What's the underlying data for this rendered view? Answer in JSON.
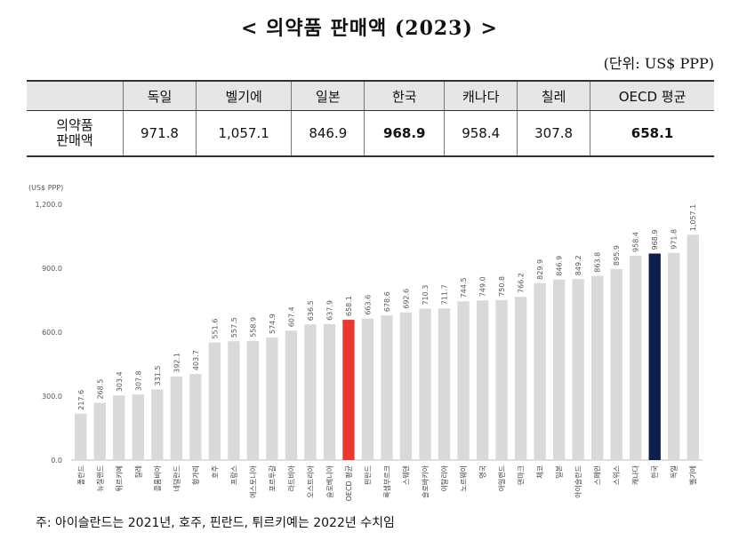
{
  "title": "< 의약품 판매액 (2023) >",
  "unit": "(단위: US$ PPP)",
  "summary_table": {
    "row_label_line1": "의약품",
    "row_label_line2": "판매액",
    "headers": [
      "독일",
      "벨기에",
      "일본",
      "한국",
      "캐나다",
      "칠레",
      "OECD 평균"
    ],
    "values": [
      "971.8",
      "1,057.1",
      "846.9",
      "968.9",
      "958.4",
      "307.8",
      "658.1"
    ]
  },
  "chart_data": {
    "type": "bar",
    "ylabel": "(US$ PPP)",
    "ylim": [
      0,
      1200
    ],
    "yticks": [
      "0.0",
      "300.0",
      "600.0",
      "900.0",
      "1,200.0"
    ],
    "grid": false,
    "categories": [
      "폴란드",
      "뉴질랜드",
      "튀르키예",
      "칠레",
      "콜롬비아",
      "네덜란드",
      "헝가리",
      "호주",
      "프랑스",
      "에스토니아",
      "포르투갈",
      "라트비아",
      "오스트리아",
      "슬로베니아",
      "OECD 평균",
      "핀란드",
      "룩셈부르크",
      "스웨덴",
      "슬로바키아",
      "이탈리아",
      "노르웨이",
      "영국",
      "아일랜드",
      "덴마크",
      "체코",
      "일본",
      "아이슬란드",
      "스페인",
      "스위스",
      "캐나다",
      "한국",
      "독일",
      "벨기에"
    ],
    "values": [
      217.6,
      268.5,
      303.4,
      307.8,
      331.5,
      392.1,
      403.7,
      551.6,
      557.5,
      558.9,
      574.9,
      607.4,
      636.5,
      637.9,
      658.1,
      663.6,
      678.6,
      692.6,
      710.3,
      711.7,
      744.5,
      749.0,
      750.8,
      766.2,
      829.9,
      846.9,
      849.2,
      863.8,
      895.9,
      958.4,
      968.9,
      971.8,
      1057.1
    ],
    "labels": [
      "217.6",
      "268.5",
      "303.4",
      "307.8",
      "331.5",
      "392.1",
      "403.7",
      "551.6",
      "557.5",
      "558.9",
      "574.9",
      "607.4",
      "636.5",
      "637.9",
      "658.1",
      "663.6",
      "678.6",
      "692.6",
      "710.3",
      "711.7",
      "744.5",
      "749.0",
      "750.8",
      "766.2",
      "829.9",
      "846.9",
      "849.2",
      "863.8",
      "895.9",
      "958.4",
      "968.9",
      "971.8",
      "1,057.1"
    ],
    "colors": {
      "default": "#d9d9d9",
      "oecd": "#e8382f",
      "korea": "#0f1f4d"
    },
    "highlight": {
      "OECD 평균": "oecd",
      "한국": "korea"
    }
  },
  "note": "주: 아이슬란드는 2021년, 호주, 핀란드, 튀르키예는 2022년 수치임"
}
